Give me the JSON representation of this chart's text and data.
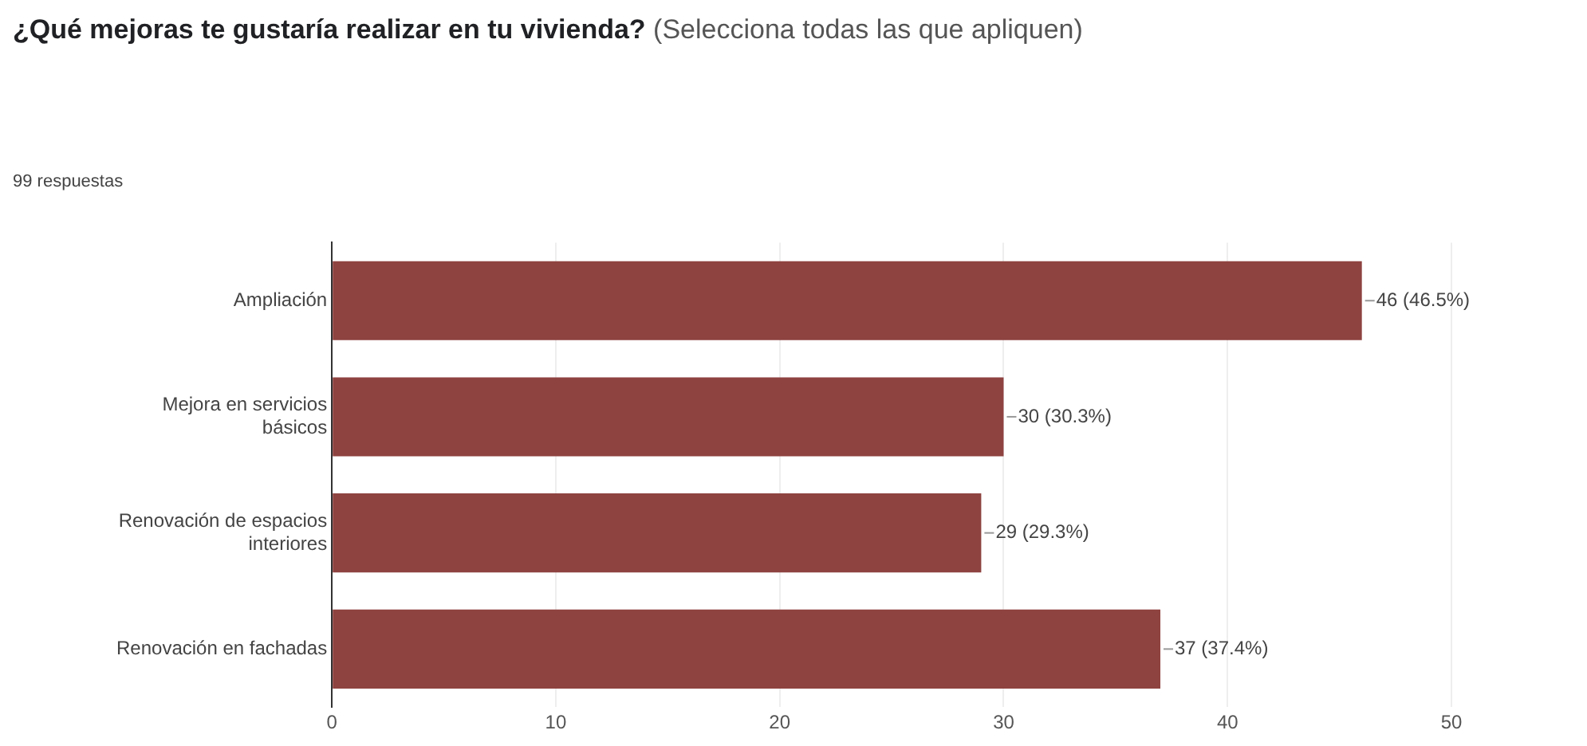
{
  "chart_data": {
    "type": "bar",
    "orientation": "horizontal",
    "title": "¿Qué mejoras te gustaría realizar en tu vivienda?",
    "subtitle": "(Selecciona todas las que apliquen)",
    "annotations": [
      "99 respuestas"
    ],
    "categories": [
      "Ampliación",
      "Mejora en servicios básicos",
      "Renovación de espacios interiores",
      "Renovación en fachadas"
    ],
    "values": [
      46,
      30,
      29,
      37
    ],
    "color": "#8e4340",
    "value_labels": [
      "46 (46.5%)",
      "30 (30.3%)",
      "29 (29.3%)",
      "37 (37.4%)"
    ],
    "xlim": [
      0,
      50
    ],
    "xticks": [
      0,
      10,
      20,
      30,
      40,
      50
    ],
    "grid": "x"
  }
}
